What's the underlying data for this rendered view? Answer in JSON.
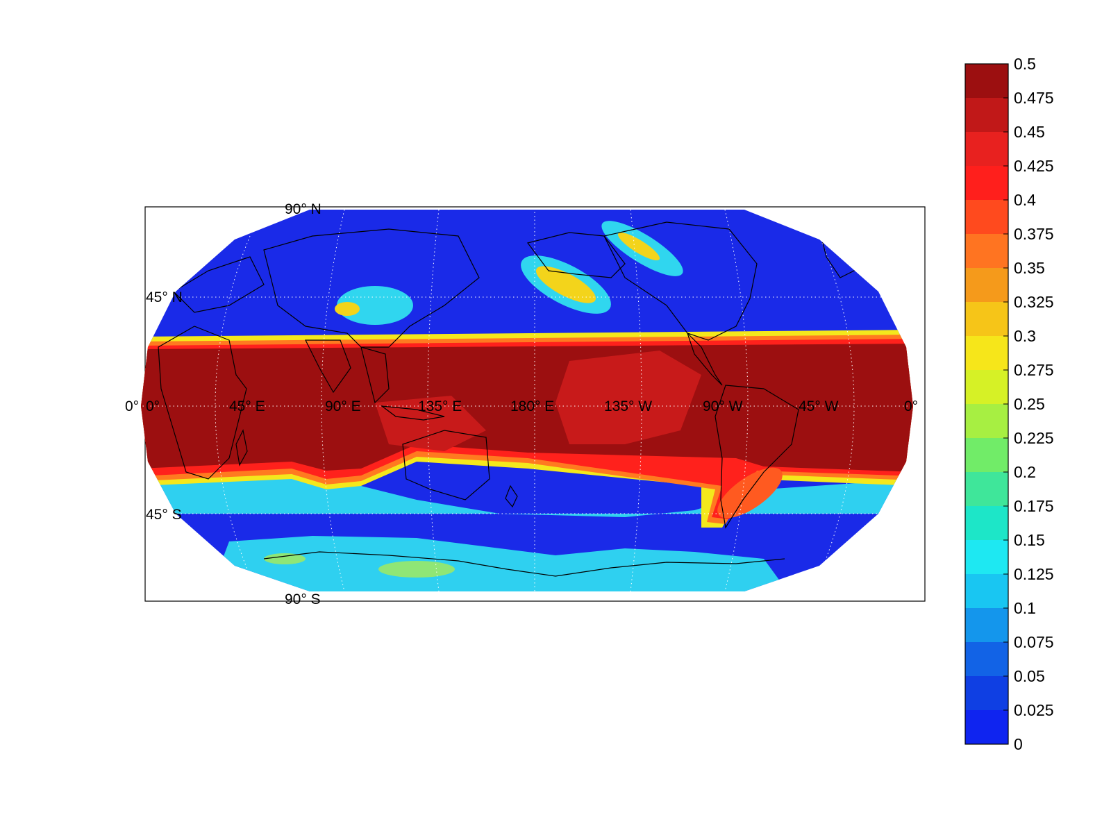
{
  "map": {
    "projection": "Robinson",
    "central_meridian": "180 E",
    "lat_labels": [
      {
        "deg": "90",
        "hemi": "N"
      },
      {
        "deg": "45",
        "hemi": "N"
      },
      {
        "deg": "0",
        "hemi": ""
      },
      {
        "deg": "45",
        "hemi": "S"
      },
      {
        "deg": "90",
        "hemi": "S"
      }
    ],
    "lon_labels": [
      {
        "deg": "0",
        "hemi": ""
      },
      {
        "deg": "45",
        "hemi": "E"
      },
      {
        "deg": "90",
        "hemi": "E"
      },
      {
        "deg": "135",
        "hemi": "E"
      },
      {
        "deg": "180",
        "hemi": "E"
      },
      {
        "deg": "135",
        "hemi": "W"
      },
      {
        "deg": "90",
        "hemi": "W"
      },
      {
        "deg": "45",
        "hemi": "W"
      },
      {
        "deg": "0",
        "hemi": ""
      }
    ],
    "degree_symbol": "°",
    "graticule": "dotted-white",
    "coastlines": "black"
  },
  "colorbar": {
    "ticks": [
      "0.5",
      "0.475",
      "0.45",
      "0.425",
      "0.4",
      "0.375",
      "0.35",
      "0.325",
      "0.3",
      "0.275",
      "0.25",
      "0.225",
      "0.2",
      "0.175",
      "0.15",
      "0.125",
      "0.1",
      "0.075",
      "0.05",
      "0.025",
      "0"
    ],
    "colors": [
      "#9c0f10",
      "#c11818",
      "#e8211f",
      "#ff1f1c",
      "#ff4a1e",
      "#ff7421",
      "#f59a1b",
      "#f6c518",
      "#f6e61a",
      "#d6f126",
      "#a7ef42",
      "#71ec68",
      "#3fe69a",
      "#1de6c8",
      "#1ee8f2",
      "#19c6f2",
      "#1496ec",
      "#1263e6",
      "#0f3fe3",
      "#0f24f0"
    ]
  }
}
